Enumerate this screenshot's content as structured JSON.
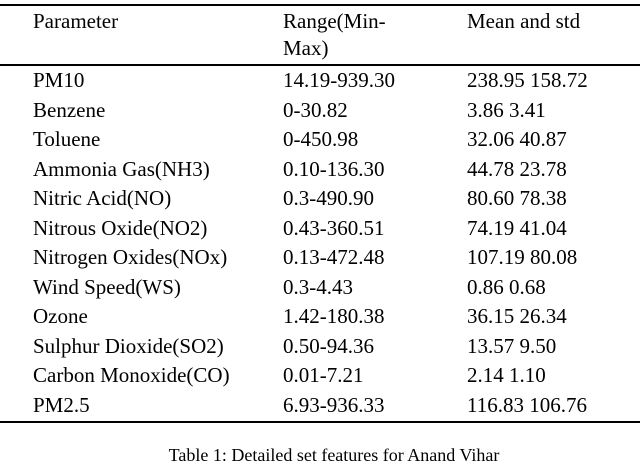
{
  "table": {
    "caption": "Table 1: Detailed set features for Anand Vihar",
    "columns": [
      "Parameter",
      "Range(Min-Max)",
      "Mean and std"
    ],
    "rows": [
      {
        "parameter": "PM10",
        "range": "14.19-939.30",
        "mean_std": "238.95 158.72"
      },
      {
        "parameter": "Benzene",
        "range": "0-30.82",
        "mean_std": "3.86 3.41"
      },
      {
        "parameter": "Toluene",
        "range": "0-450.98",
        "mean_std": "32.06 40.87"
      },
      {
        "parameter": "Ammonia Gas(NH3)",
        "range": "0.10-136.30",
        "mean_std": "44.78 23.78"
      },
      {
        "parameter": "Nitric Acid(NO)",
        "range": "0.3-490.90",
        "mean_std": "80.60 78.38"
      },
      {
        "parameter": "Nitrous Oxide(NO2)",
        "range": "0.43-360.51",
        "mean_std": "74.19 41.04"
      },
      {
        "parameter": "Nitrogen Oxides(NOx)",
        "range": "0.13-472.48",
        "mean_std": "107.19 80.08"
      },
      {
        "parameter": "Wind Speed(WS)",
        "range": "0.3-4.43",
        "mean_std": "0.86 0.68"
      },
      {
        "parameter": "Ozone",
        "range": "1.42-180.38",
        "mean_std": "36.15 26.34"
      },
      {
        "parameter": "Sulphur Dioxide(SO2)",
        "range": "0.50-94.36",
        "mean_std": "13.57 9.50"
      },
      {
        "parameter": "Carbon Monoxide(CO)",
        "range": "0.01-7.21",
        "mean_std": "2.14 1.10"
      },
      {
        "parameter": "PM2.5",
        "range": "6.93-936.33",
        "mean_std": "116.83 106.76"
      }
    ],
    "text_color": "#000000",
    "rule_color": "#000000",
    "background_color": "#ffffff"
  }
}
